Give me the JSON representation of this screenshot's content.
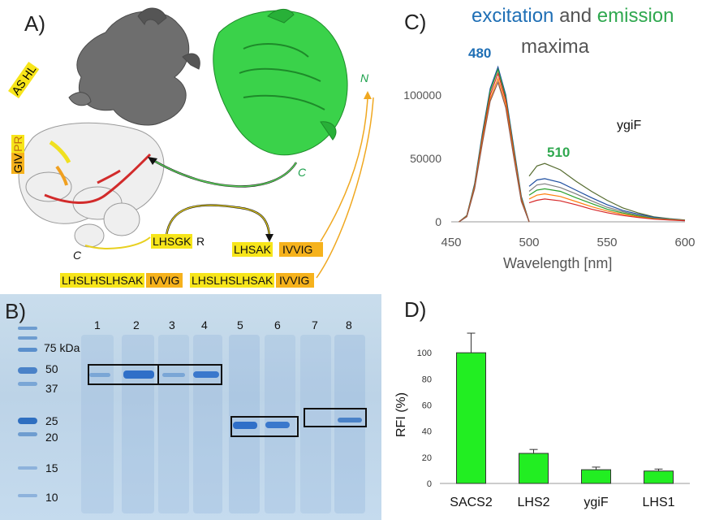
{
  "panels": {
    "a": "A)",
    "b": "B)",
    "c": "C)",
    "d": "D)"
  },
  "panel_a": {
    "labels": {
      "as_hl": "AS HL",
      "givpr_giv": "GIV",
      "givpr_pr": "PR",
      "n_term": "N",
      "c_term_green": "C",
      "c_term_white": "C"
    },
    "sequences": {
      "lhsgk": "LHSGK",
      "lhsgk_r": "R",
      "lhsak": "LHSAK",
      "ivvig": "IVVIG",
      "long_1": "LHSLHSLHSAK",
      "long_2": "IVVIG",
      "long_3": "LHSLHSLHSAK",
      "long_4": "IVVIG"
    }
  },
  "panel_b": {
    "lanes": [
      "1",
      "2",
      "3",
      "4",
      "5",
      "6",
      "7",
      "8"
    ],
    "mw_markers": [
      "75 kDa",
      "50",
      "37",
      "25",
      "20",
      "15",
      "10"
    ]
  },
  "panel_c": {
    "title_excitation": "excitation",
    "title_and": "and",
    "title_emission": "emission",
    "title_maxima": "maxima",
    "peak_480": "480",
    "peak_510": "510",
    "label_ygif": "ygiF",
    "colors": {
      "excitation": "#1f6fb5",
      "emission": "#2fa84f",
      "maxima": "#555555"
    },
    "chart_data": {
      "type": "line",
      "xlabel": "Wavelength [nm]",
      "xlim": [
        450,
        600
      ],
      "ylim": [
        0,
        130000
      ],
      "x_ticks": [
        450,
        500,
        550,
        600
      ],
      "y_ticks": [
        0,
        50000,
        100000
      ],
      "excitation_x": [
        455,
        460,
        465,
        470,
        475,
        480,
        485,
        490,
        495,
        500
      ],
      "excitation_series": [
        {
          "values": [
            0,
            5000,
            30000,
            70000,
            105000,
            122000,
            100000,
            60000,
            20000,
            0
          ],
          "color": "#1f4fa0"
        },
        {
          "values": [
            0,
            4800,
            29000,
            68000,
            103000,
            120000,
            98000,
            58000,
            19000,
            0
          ],
          "color": "#2ca02c"
        },
        {
          "values": [
            0,
            4500,
            28000,
            66000,
            100000,
            117000,
            96000,
            56000,
            18000,
            0
          ],
          "color": "#d62728"
        },
        {
          "values": [
            0,
            4200,
            27000,
            64000,
            97000,
            113000,
            93000,
            54000,
            17000,
            0
          ],
          "color": "#ff7f0e"
        },
        {
          "values": [
            0,
            4000,
            26000,
            62000,
            95000,
            110000,
            90000,
            52000,
            16000,
            0
          ],
          "color": "#8c564b"
        }
      ],
      "emission_x": [
        500,
        505,
        510,
        520,
        530,
        540,
        550,
        560,
        570,
        580,
        590,
        600
      ],
      "emission_series": [
        {
          "values": [
            36000,
            44000,
            46000,
            41000,
            32000,
            24000,
            17000,
            11000,
            7000,
            4000,
            2500,
            1500
          ],
          "color": "#556b2f"
        },
        {
          "values": [
            28000,
            33000,
            34000,
            31000,
            25000,
            19000,
            13500,
            9000,
            6000,
            3500,
            2200,
            1300
          ],
          "color": "#1f4fa0"
        },
        {
          "values": [
            24000,
            29000,
            30000,
            27000,
            22000,
            16500,
            11500,
            8000,
            5200,
            3000,
            2000,
            1200
          ],
          "color": "#7f7f7f"
        },
        {
          "values": [
            21000,
            25000,
            26000,
            24000,
            19000,
            14500,
            10000,
            7000,
            4600,
            2700,
            1800,
            1100
          ],
          "color": "#2ca02c"
        },
        {
          "values": [
            18000,
            21000,
            22000,
            20000,
            16000,
            12000,
            8500,
            6000,
            4000,
            2400,
            1600,
            1000
          ],
          "color": "#ff7f0e"
        },
        {
          "values": [
            15000,
            17000,
            18000,
            16500,
            13500,
            10000,
            7200,
            5000,
            3400,
            2100,
            1400,
            900
          ],
          "color": "#d62728"
        }
      ]
    }
  },
  "panel_d": {
    "chart_data": {
      "type": "bar",
      "categories": [
        "SACS2",
        "LHS2",
        "ygiF",
        "LHS1"
      ],
      "values": [
        100,
        23,
        10.5,
        9.5
      ],
      "errors": [
        15,
        3,
        2,
        1.5
      ],
      "ylabel": "RFI (%)",
      "ylim": [
        0,
        120
      ],
      "y_ticks": [
        0,
        20,
        40,
        60,
        80,
        100
      ],
      "bar_color": "#22ee22"
    }
  }
}
